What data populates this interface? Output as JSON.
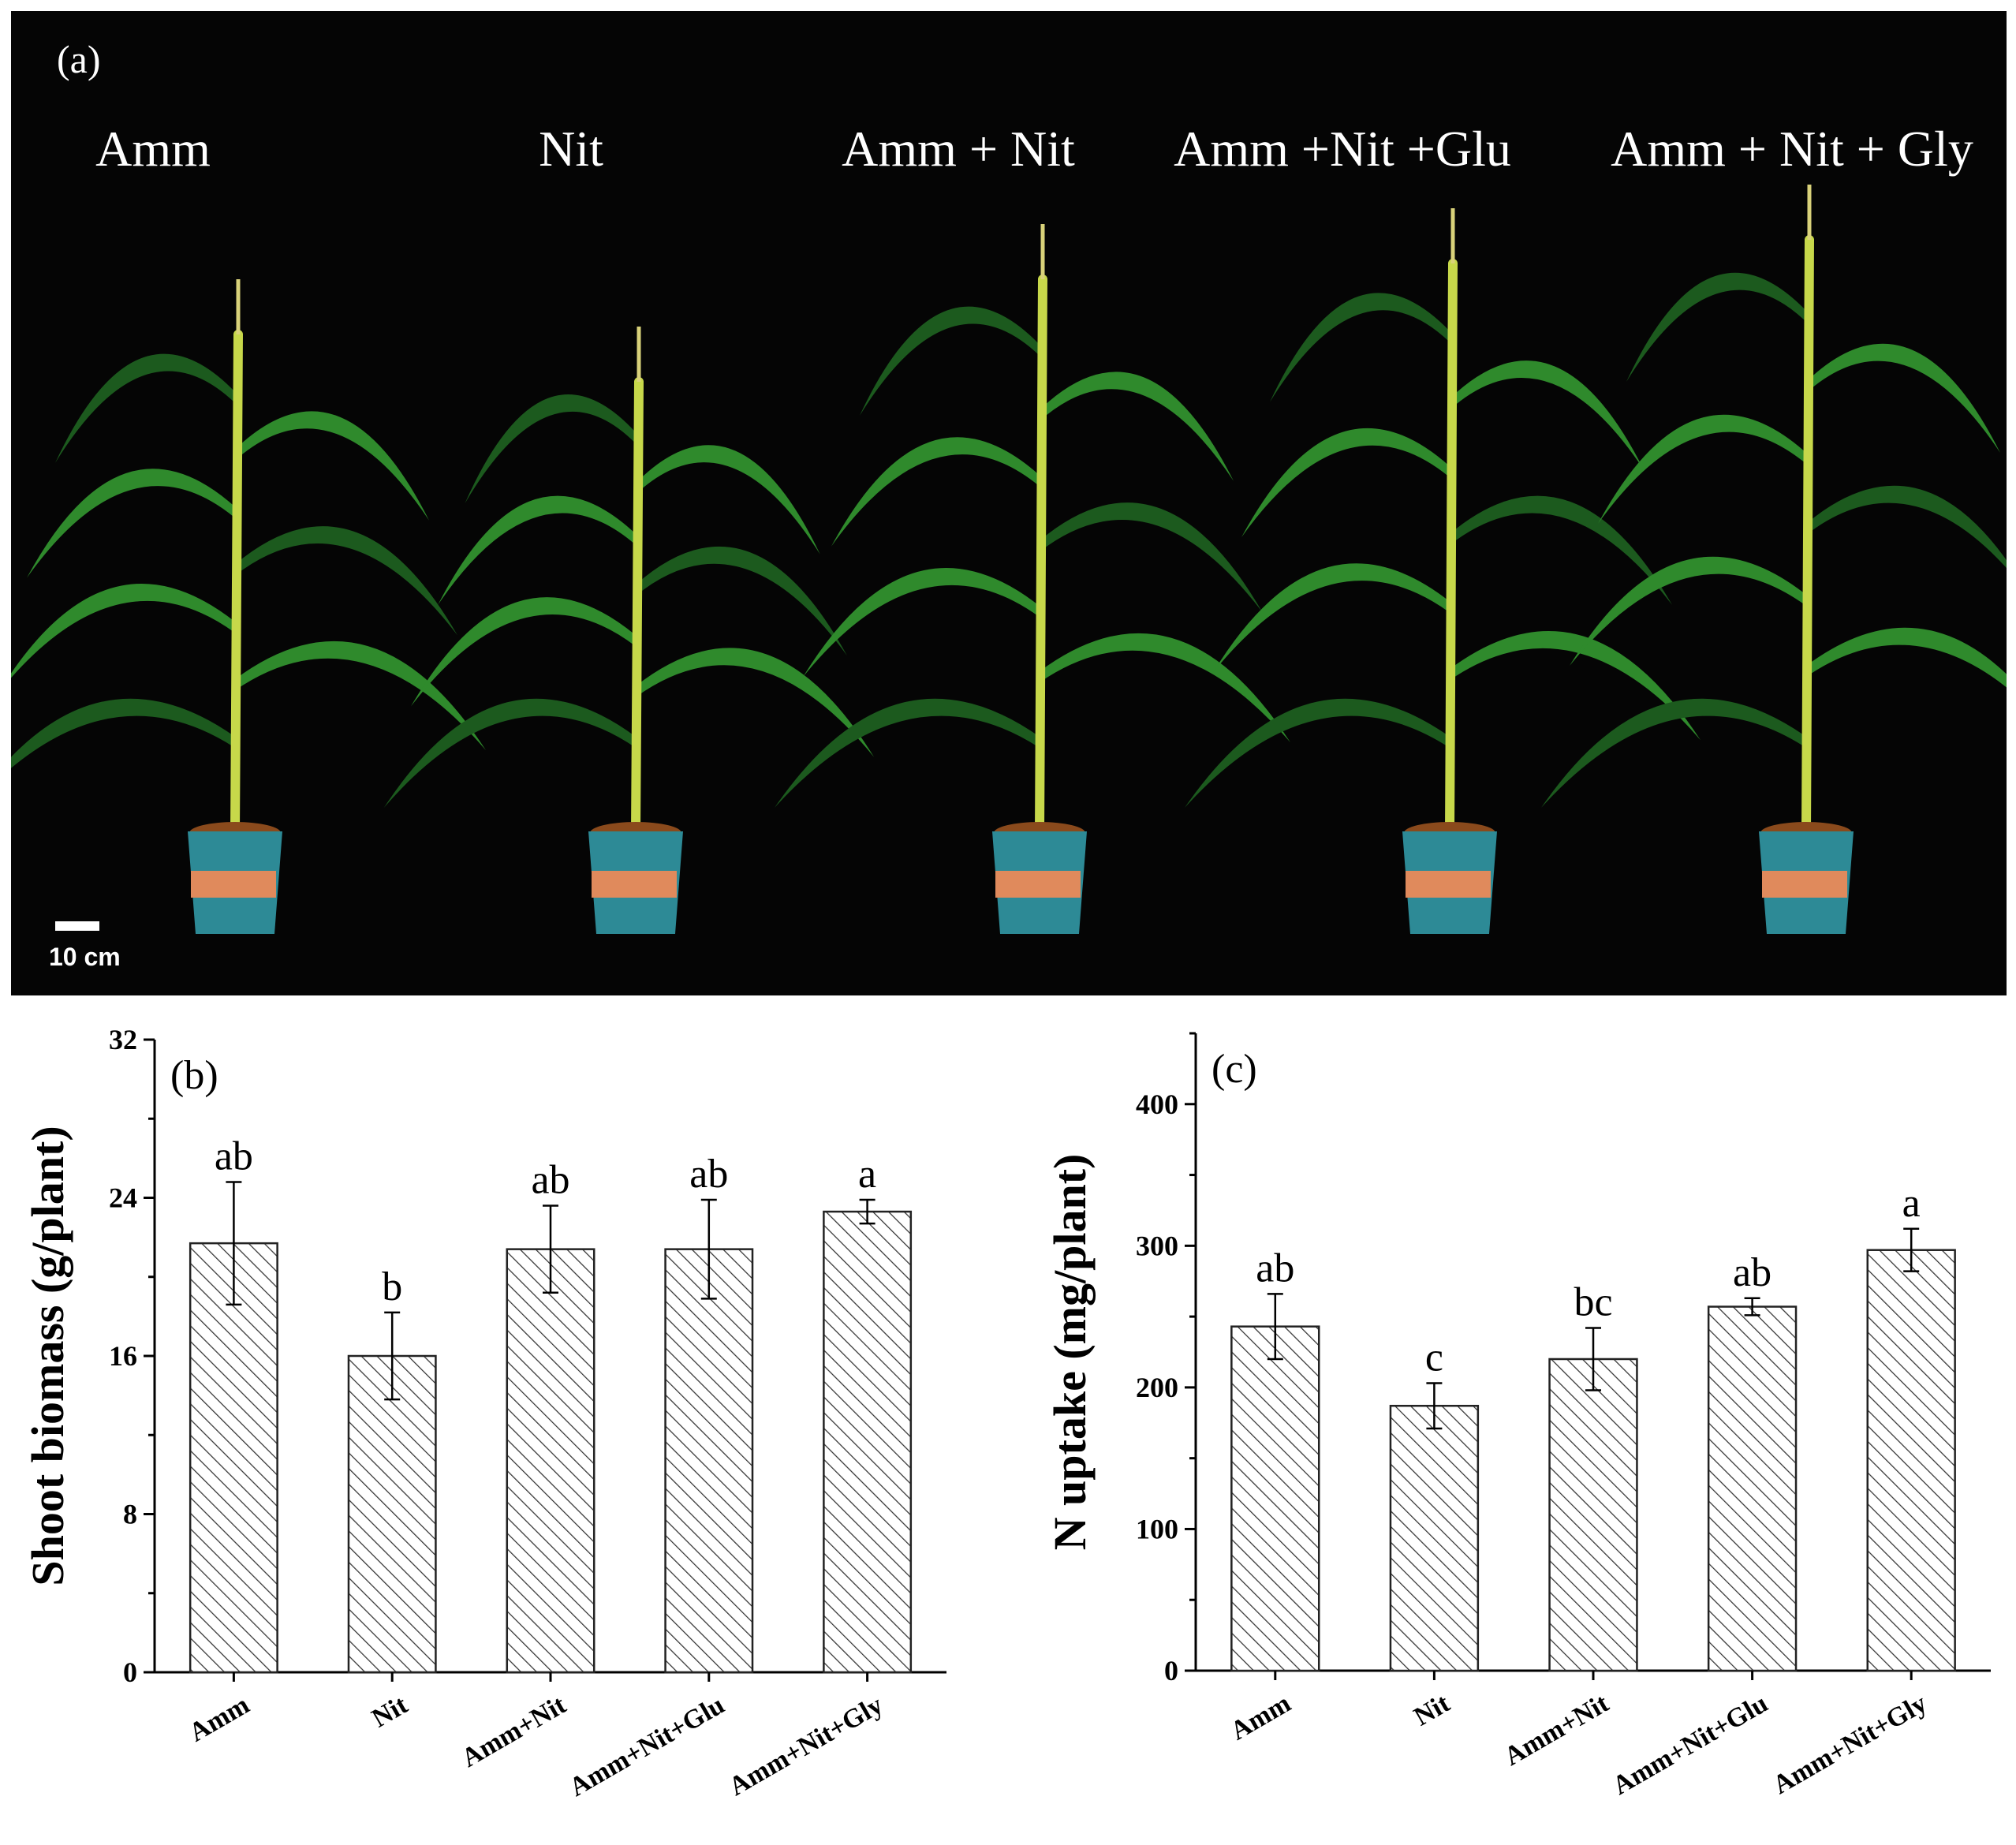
{
  "photo": {
    "panel_label": "(a)",
    "treatment_labels": [
      "Amm",
      "Nit",
      "Amm + Nit",
      "Amm +Nit +Glu",
      "Amm + Nit + Gly"
    ],
    "scale_bar_label": "10 cm",
    "colors": {
      "background": "#050505",
      "leaf": "#2f8a2c",
      "leaf_dark": "#1c5a1e",
      "stem": "#c7d84a",
      "pot": "#2d8a96",
      "pot_label": "#e08a5c",
      "soil": "#8a4a1c",
      "tassel": "#d9d27a"
    }
  },
  "chart_data": [
    {
      "type": "bar",
      "panel_label": "(b)",
      "categories": [
        "Amm",
        "Nit",
        "Amm+Nit",
        "Amm+Nit+Glu",
        "Amm+Nit+Gly"
      ],
      "values": [
        21.7,
        16.0,
        21.4,
        21.4,
        23.3
      ],
      "errors": [
        3.1,
        2.2,
        2.2,
        2.5,
        0.6
      ],
      "significance_letters": [
        "ab",
        "b",
        "ab",
        "ab",
        "a"
      ],
      "title": "",
      "xlabel": "",
      "ylabel": "Shoot biomass (g/plant)",
      "ylim": [
        0,
        32
      ],
      "yticks": [
        0,
        8,
        16,
        24,
        32
      ],
      "grid": false,
      "legend": "none",
      "bar_fill": "hatched diagonal",
      "colors": {
        "bar_stroke": "#222222",
        "hatch": "#333333",
        "axis": "#000000"
      }
    },
    {
      "type": "bar",
      "panel_label": "(c)",
      "categories": [
        "Amm",
        "Nit",
        "Amm+Nit",
        "Amm+Nit+Glu",
        "Amm+Nit+Gly"
      ],
      "values": [
        243,
        187,
        220,
        257,
        297
      ],
      "errors": [
        23,
        16,
        22,
        6,
        15
      ],
      "significance_letters": [
        "ab",
        "c",
        "bc",
        "ab",
        "a"
      ],
      "title": "",
      "xlabel": "",
      "ylabel": "N uptake (mg/plant)",
      "ylim": [
        0,
        450
      ],
      "yticks": [
        0,
        100,
        200,
        300,
        400
      ],
      "grid": false,
      "legend": "none",
      "bar_fill": "hatched diagonal",
      "colors": {
        "bar_stroke": "#222222",
        "hatch": "#333333",
        "axis": "#000000"
      }
    }
  ]
}
